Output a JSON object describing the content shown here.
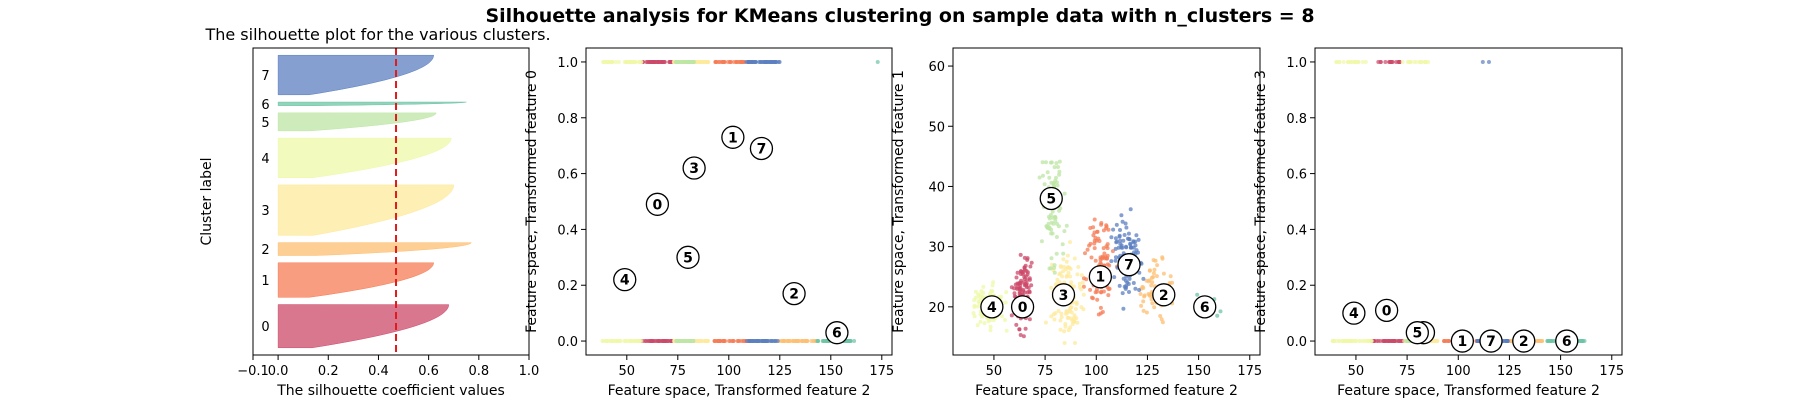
{
  "figure": {
    "suptitle": "Silhouette analysis for KMeans clustering on sample data with n_clusters = 8"
  },
  "chart_data": [
    {
      "type": "area",
      "title": "The silhouette plot for the various clusters.",
      "xlabel": "The silhouette coefficient values",
      "ylabel": "Cluster label",
      "xlim": [
        -0.1,
        1.0
      ],
      "xticks": [
        "−0.1",
        "0.0",
        "0.2",
        "0.4",
        "0.6",
        "0.8",
        "1.0"
      ],
      "average_silhouette": 0.47,
      "clusters": [
        {
          "label": "0",
          "size": 60,
          "max": 0.68,
          "color": "#cc4a6a"
        },
        {
          "label": "1",
          "size": 48,
          "max": 0.62,
          "color": "#f57c55"
        },
        {
          "label": "2",
          "size": 18,
          "max": 0.77,
          "color": "#fdbf72"
        },
        {
          "label": "3",
          "size": 70,
          "max": 0.7,
          "color": "#fee99b"
        },
        {
          "label": "4",
          "size": 55,
          "max": 0.69,
          "color": "#eff8a8"
        },
        {
          "label": "5",
          "size": 25,
          "max": 0.63,
          "color": "#bde6a4"
        },
        {
          "label": "6",
          "size": 5,
          "max": 0.75,
          "color": "#6cc4a4"
        },
        {
          "label": "7",
          "size": 55,
          "max": 0.62,
          "color": "#5b7fc0"
        }
      ]
    },
    {
      "type": "scatter",
      "xlabel": "Feature space, Transformed feature 2",
      "ylabel": "Feature space, Transformed feature 0",
      "xlim": [
        30,
        180
      ],
      "ylim": [
        -0.05,
        1.05
      ],
      "xticks": [
        "50",
        "75",
        "100",
        "125",
        "150",
        "175"
      ],
      "yticks": [
        "0.0",
        "0.2",
        "0.4",
        "0.6",
        "0.8",
        "1.0"
      ],
      "centers": [
        {
          "label": "0",
          "x": 65,
          "y": 0.49
        },
        {
          "label": "1",
          "x": 102,
          "y": 0.73
        },
        {
          "label": "2",
          "x": 132,
          "y": 0.17
        },
        {
          "label": "3",
          "x": 83,
          "y": 0.62
        },
        {
          "label": "4",
          "x": 49,
          "y": 0.22
        },
        {
          "label": "5",
          "x": 80,
          "y": 0.3
        },
        {
          "label": "6",
          "x": 153,
          "y": 0.03
        },
        {
          "label": "7",
          "x": 116,
          "y": 0.69
        }
      ]
    },
    {
      "type": "scatter",
      "xlabel": "Feature space, Transformed feature 2",
      "ylabel": "Feature space, Transformed feature 1",
      "xlim": [
        30,
        180
      ],
      "ylim": [
        12,
        63
      ],
      "xticks": [
        "50",
        "75",
        "100",
        "125",
        "150",
        "175"
      ],
      "yticks": [
        "20",
        "30",
        "40",
        "50",
        "60"
      ],
      "centers": [
        {
          "label": "0",
          "x": 64,
          "y": 20
        },
        {
          "label": "1",
          "x": 102,
          "y": 25
        },
        {
          "label": "2",
          "x": 133,
          "y": 22
        },
        {
          "label": "3",
          "x": 84,
          "y": 22
        },
        {
          "label": "4",
          "x": 49,
          "y": 20
        },
        {
          "label": "5",
          "x": 78,
          "y": 38
        },
        {
          "label": "6",
          "x": 153,
          "y": 20
        },
        {
          "label": "7",
          "x": 116,
          "y": 27
        }
      ]
    },
    {
      "type": "scatter",
      "xlabel": "Feature space, Transformed feature 2",
      "ylabel": "Feature space, Transformed feature 3",
      "xlim": [
        30,
        180
      ],
      "ylim": [
        -0.05,
        1.05
      ],
      "xticks": [
        "50",
        "75",
        "100",
        "125",
        "150",
        "175"
      ],
      "yticks": [
        "0.0",
        "0.2",
        "0.4",
        "0.6",
        "0.8",
        "1.0"
      ],
      "centers": [
        {
          "label": "0",
          "x": 65,
          "y": 0.11
        },
        {
          "label": "1",
          "x": 102,
          "y": 0.0
        },
        {
          "label": "2",
          "x": 132,
          "y": 0.0
        },
        {
          "label": "3",
          "x": 83,
          "y": 0.03
        },
        {
          "label": "4",
          "x": 49,
          "y": 0.1
        },
        {
          "label": "5",
          "x": 80,
          "y": 0.03
        },
        {
          "label": "6",
          "x": 153,
          "y": 0.0
        },
        {
          "label": "7",
          "x": 116,
          "y": 0.0
        }
      ]
    }
  ]
}
